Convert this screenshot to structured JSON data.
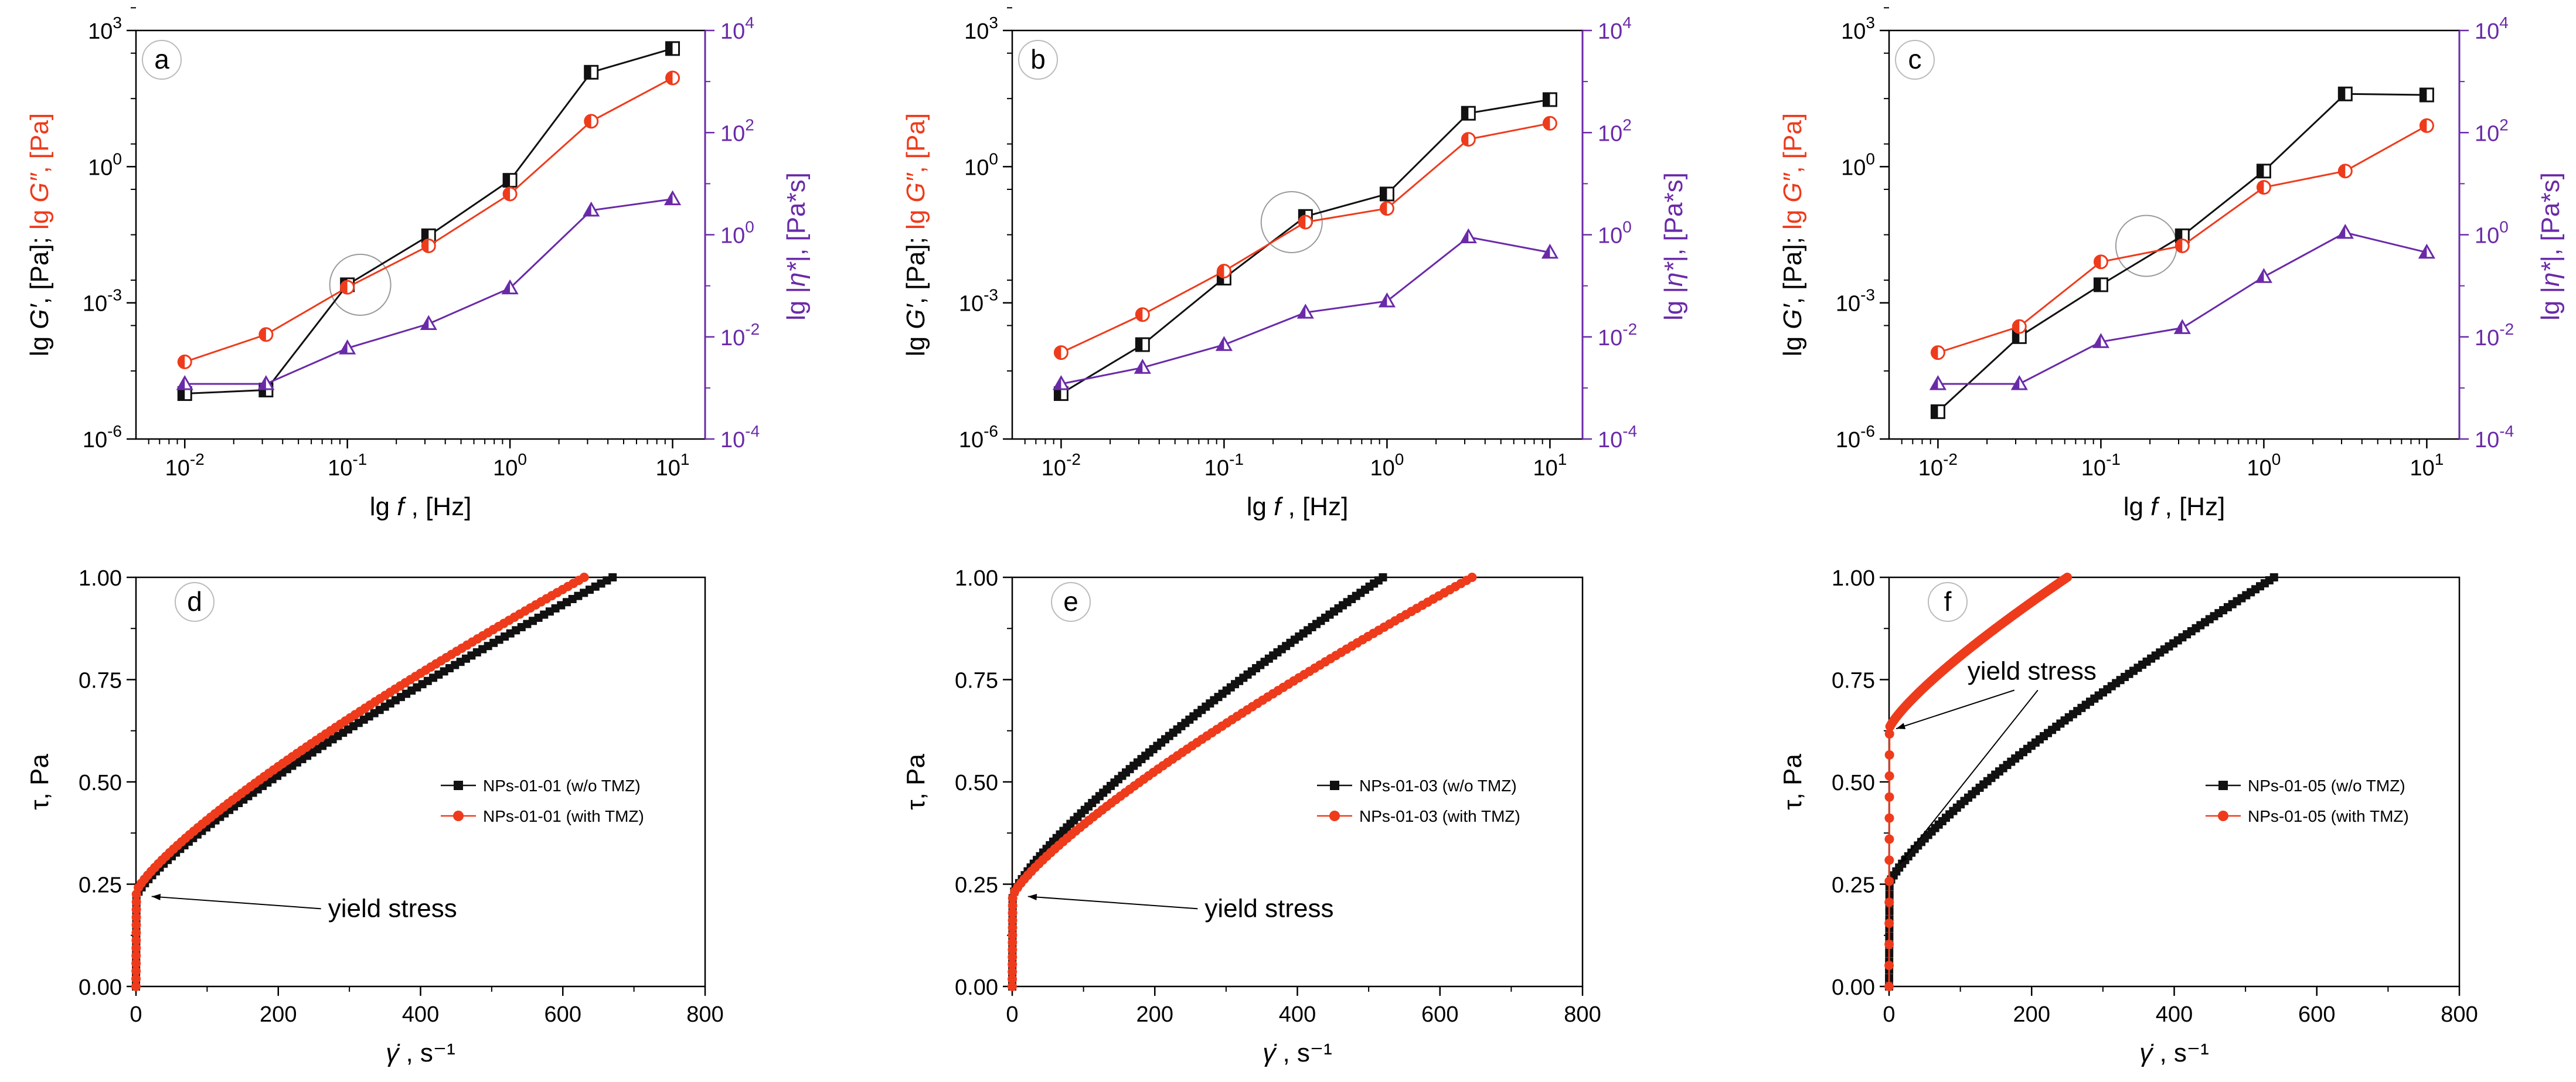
{
  "colors": {
    "black": "#111111",
    "red": "#ee3b1c",
    "purple": "#6a2aa8",
    "axis": "#000000",
    "circle": "#9a9a9a"
  },
  "chart_data": [
    {
      "id": "a",
      "type": "line",
      "panel_label": "a",
      "xlabel_pre": "lg ",
      "xlabel_var": "f",
      "xlabel_post": " , [Hz]",
      "ylabel_left_a": "lg ",
      "ylabel_left_b": "G′",
      "ylabel_left_c": ", [Pa]; ",
      "ylabel_left_d": "lg ",
      "ylabel_left_e": "G″",
      "ylabel_left_f": ", [Pa]",
      "ylabel_right_a": "lg |",
      "ylabel_right_b": "η*",
      "ylabel_right_c": "|, [Pa*s]",
      "x_ticks": [
        "10",
        "10",
        "10"
      ],
      "x_tick_exps": [
        "-2",
        "-1",
        "0",
        "1"
      ],
      "x_tick_bases": [
        "10",
        "10",
        "10",
        "10"
      ],
      "y_left_tick_bases": [
        "10",
        "10",
        "10"
      ],
      "y_left_tick_exps": [
        "3",
        "0",
        "-3",
        "-6"
      ],
      "y_right_tick_bases": [
        "10",
        "10",
        "10",
        "10"
      ],
      "y_right_tick_exps": [
        "4",
        "2",
        "0",
        "-2",
        "-4"
      ],
      "xlim_log10": [
        -2.3,
        1.2
      ],
      "ylim_left_log10": [
        -6,
        3
      ],
      "ylim_right_log10": [
        -4,
        4
      ],
      "x": [
        0.01,
        0.0316,
        0.1,
        0.316,
        1,
        3.16,
        10
      ],
      "series": [
        {
          "name": "G′",
          "axis": "left",
          "color": "black",
          "marker": "square",
          "values": [
            1e-05,
            1.2e-05,
            0.0025,
            0.03,
            0.5,
            120,
            400
          ]
        },
        {
          "name": "G″",
          "axis": "left",
          "color": "red",
          "marker": "circle",
          "values": [
            5e-05,
            0.0002,
            0.0022,
            0.018,
            0.25,
            10,
            90
          ]
        },
        {
          "name": "|η*|",
          "axis": "right",
          "color": "purple",
          "marker": "triangle",
          "values": [
            0.0012,
            0.0012,
            0.006,
            0.018,
            0.09,
            3,
            5
          ]
        }
      ],
      "crossover_circle": {
        "x": 0.12,
        "y_left": 0.0025
      }
    },
    {
      "id": "b",
      "type": "line",
      "panel_label": "b",
      "xlabel_pre": "lg ",
      "xlabel_var": "f",
      "xlabel_post": " , [Hz]",
      "ylabel_left_a": "lg ",
      "ylabel_left_b": "G′",
      "ylabel_left_c": ", [Pa]; ",
      "ylabel_left_d": "lg ",
      "ylabel_left_e": "G″",
      "ylabel_left_f": ", [Pa]",
      "ylabel_right_a": "lg |",
      "ylabel_right_b": "η*",
      "ylabel_right_c": "|, [Pa*s]",
      "x_tick_exps": [
        "-2",
        "-1",
        "0",
        "1"
      ],
      "x_tick_bases": [
        "10",
        "10",
        "10",
        "10"
      ],
      "y_left_tick_bases": [
        "10",
        "10",
        "10"
      ],
      "y_left_tick_exps": [
        "3",
        "0",
        "-3",
        "-6"
      ],
      "y_right_tick_bases": [
        "10",
        "10",
        "10",
        "10"
      ],
      "y_right_tick_exps": [
        "4",
        "2",
        "0",
        "-2",
        "-4"
      ],
      "xlim_log10": [
        -2.3,
        1.2
      ],
      "ylim_left_log10": [
        -6,
        3
      ],
      "ylim_right_log10": [
        -4,
        4
      ],
      "x": [
        0.01,
        0.0316,
        0.1,
        0.316,
        1,
        3.16,
        10
      ],
      "series": [
        {
          "name": "G′",
          "axis": "left",
          "color": "black",
          "marker": "square",
          "values": [
            1e-05,
            0.00012,
            0.0035,
            0.08,
            0.25,
            15,
            30
          ]
        },
        {
          "name": "G″",
          "axis": "left",
          "color": "red",
          "marker": "circle",
          "values": [
            8e-05,
            0.00055,
            0.005,
            0.06,
            0.12,
            4,
            9
          ]
        },
        {
          "name": "|η*|",
          "axis": "right",
          "color": "purple",
          "marker": "triangle",
          "values": [
            0.0012,
            0.0025,
            0.007,
            0.03,
            0.05,
            0.9,
            0.45
          ]
        }
      ],
      "crossover_circle": {
        "x": 0.26,
        "y_left": 0.06
      }
    },
    {
      "id": "c",
      "type": "line",
      "panel_label": "c",
      "xlabel_pre": "lg ",
      "xlabel_var": "f",
      "xlabel_post": " , [Hz]",
      "ylabel_left_a": "lg ",
      "ylabel_left_b": "G′",
      "ylabel_left_c": ", [Pa]; ",
      "ylabel_left_d": "lg ",
      "ylabel_left_e": "G″",
      "ylabel_left_f": ", [Pa]",
      "ylabel_right_a": "lg |",
      "ylabel_right_b": "η*",
      "ylabel_right_c": "|, [Pa*s]",
      "x_tick_exps": [
        "-2",
        "-1",
        "0",
        "1"
      ],
      "x_tick_bases": [
        "10",
        "10",
        "10",
        "10"
      ],
      "y_left_tick_bases": [
        "10",
        "10",
        "10"
      ],
      "y_left_tick_exps": [
        "3",
        "0",
        "-3",
        "-6"
      ],
      "y_right_tick_bases": [
        "10",
        "10",
        "10",
        "10"
      ],
      "y_right_tick_exps": [
        "4",
        "2",
        "0",
        "-2",
        "-4"
      ],
      "xlim_log10": [
        -2.3,
        1.2
      ],
      "ylim_left_log10": [
        -6,
        3
      ],
      "ylim_right_log10": [
        -4,
        4
      ],
      "x": [
        0.01,
        0.0316,
        0.1,
        0.316,
        1,
        3.16,
        10
      ],
      "series": [
        {
          "name": "G′",
          "axis": "left",
          "color": "black",
          "marker": "square",
          "values": [
            4e-06,
            0.00018,
            0.0025,
            0.03,
            0.8,
            40,
            38
          ]
        },
        {
          "name": "G″",
          "axis": "left",
          "color": "red",
          "marker": "circle",
          "values": [
            8e-05,
            0.0003,
            0.008,
            0.018,
            0.35,
            0.8,
            8
          ]
        },
        {
          "name": "|η*|",
          "axis": "right",
          "color": "purple",
          "marker": "triangle",
          "values": [
            0.0012,
            0.0012,
            0.008,
            0.015,
            0.15,
            1.1,
            0.45
          ]
        }
      ],
      "crossover_circle": {
        "x": 0.19,
        "y_left": 0.018
      }
    },
    {
      "id": "d",
      "type": "scatter",
      "panel_label": "d",
      "xlabel_var": "γ̇",
      "xlabel_post": " , s⁻¹",
      "ylabel": "τ, Pa",
      "x_ticks": [
        "0",
        "200",
        "400",
        "600",
        "800"
      ],
      "y_ticks": [
        "0.00",
        "0.25",
        "0.50",
        "0.75",
        "1.00"
      ],
      "xlim": [
        0,
        800
      ],
      "ylim": [
        0,
        1
      ],
      "legend": [
        "NPs-01-01 (w/o TMZ)",
        "NPs-01-01 (with TMZ)"
      ],
      "legend_position": "center-right",
      "annotation": "yield stress",
      "series": [
        {
          "name": "NPs-01-01 (w/o TMZ)",
          "color": "black",
          "marker": "square",
          "yield_stress": 0.22,
          "x_at_max": 670,
          "x_max": 670
        },
        {
          "name": "NPs-01-01 (with TMZ)",
          "color": "red",
          "marker": "circle",
          "yield_stress": 0.23,
          "x_at_max": 630,
          "x_max": 630
        }
      ]
    },
    {
      "id": "e",
      "type": "scatter",
      "panel_label": "e",
      "xlabel_var": "γ̇",
      "xlabel_post": " , s⁻¹",
      "ylabel": "τ, Pa",
      "x_ticks": [
        "0",
        "200",
        "400",
        "600",
        "800"
      ],
      "y_ticks": [
        "0.00",
        "0.25",
        "0.50",
        "0.75",
        "1.00"
      ],
      "xlim": [
        0,
        800
      ],
      "ylim": [
        0,
        1
      ],
      "legend": [
        "NPs-01-03 (w/o TMZ)",
        "NPs-01-03 (with TMZ)"
      ],
      "legend_position": "center-right",
      "annotation": "yield stress",
      "series": [
        {
          "name": "NPs-01-03 (w/o TMZ)",
          "color": "black",
          "marker": "square",
          "yield_stress": 0.22,
          "x_at_max": 520,
          "x_max": 520
        },
        {
          "name": "NPs-01-03 (with TMZ)",
          "color": "red",
          "marker": "circle",
          "yield_stress": 0.22,
          "x_at_max": 645,
          "x_max": 645
        }
      ]
    },
    {
      "id": "f",
      "type": "scatter",
      "panel_label": "f",
      "xlabel_var": "γ̇",
      "xlabel_post": " , s⁻¹",
      "ylabel": "τ, Pa",
      "x_ticks": [
        "0",
        "200",
        "400",
        "600",
        "800"
      ],
      "y_ticks": [
        "0.00",
        "0.25",
        "0.50",
        "0.75",
        "1.00"
      ],
      "xlim": [
        0,
        800
      ],
      "ylim": [
        0,
        1
      ],
      "legend": [
        "NPs-01-05 (w/o TMZ)",
        "NPs-01-05 (with TMZ)"
      ],
      "legend_position": "center-right",
      "annotation": "yield stress",
      "series": [
        {
          "name": "NPs-01-05 (w/o TMZ)",
          "color": "black",
          "marker": "square",
          "yield_stress": 0.25,
          "x_at_max": 540,
          "x_max": 540
        },
        {
          "name": "NPs-01-05 (with TMZ)",
          "color": "red",
          "marker": "circle",
          "yield_stress": 0.63,
          "x_at_max": 250,
          "x_max": 250
        }
      ]
    }
  ]
}
